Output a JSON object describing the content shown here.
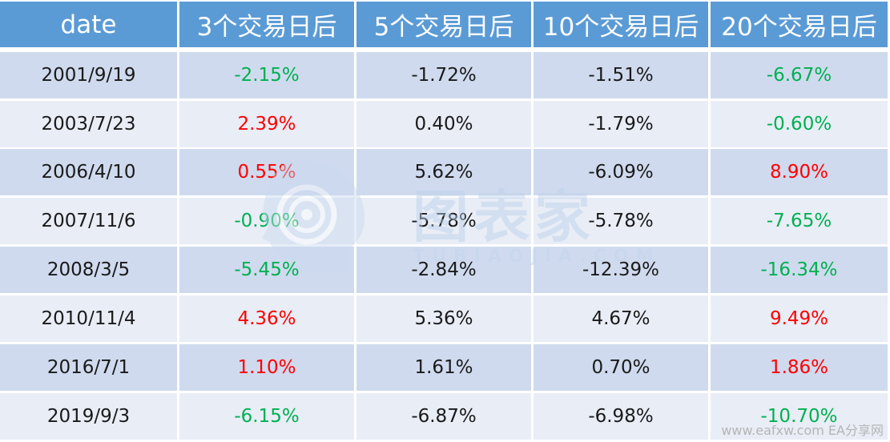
{
  "table": {
    "headers": [
      "date",
      "3个交易日后",
      "5个交易日后",
      "10个交易日后",
      "20个交易日后"
    ],
    "rows": [
      {
        "date": "2001/9/19",
        "cells": [
          {
            "v": "-2.15%",
            "c": "neg"
          },
          {
            "v": "-1.72%",
            "c": "plain"
          },
          {
            "v": "-1.51%",
            "c": "plain"
          },
          {
            "v": "-6.67%",
            "c": "neg"
          }
        ]
      },
      {
        "date": "2003/7/23",
        "cells": [
          {
            "v": "2.39%",
            "c": "pos"
          },
          {
            "v": "0.40%",
            "c": "plain"
          },
          {
            "v": "-1.79%",
            "c": "plain"
          },
          {
            "v": "-0.60%",
            "c": "neg"
          }
        ]
      },
      {
        "date": "2006/4/10",
        "cells": [
          {
            "v": "0.55%",
            "c": "pos"
          },
          {
            "v": "5.62%",
            "c": "plain"
          },
          {
            "v": "-6.09%",
            "c": "plain"
          },
          {
            "v": "8.90%",
            "c": "pos"
          }
        ]
      },
      {
        "date": "2007/11/6",
        "cells": [
          {
            "v": "-0.90%",
            "c": "neg"
          },
          {
            "v": "-5.78%",
            "c": "plain"
          },
          {
            "v": "-5.78%",
            "c": "plain"
          },
          {
            "v": "-7.65%",
            "c": "neg"
          }
        ]
      },
      {
        "date": "2008/3/5",
        "cells": [
          {
            "v": "-5.45%",
            "c": "neg"
          },
          {
            "v": "-2.84%",
            "c": "plain"
          },
          {
            "v": "-12.39%",
            "c": "plain"
          },
          {
            "v": "-16.34%",
            "c": "neg"
          }
        ]
      },
      {
        "date": "2010/11/4",
        "cells": [
          {
            "v": "4.36%",
            "c": "pos"
          },
          {
            "v": "5.36%",
            "c": "plain"
          },
          {
            "v": "4.67%",
            "c": "plain"
          },
          {
            "v": "9.49%",
            "c": "pos"
          }
        ]
      },
      {
        "date": "2016/7/1",
        "cells": [
          {
            "v": "1.10%",
            "c": "pos"
          },
          {
            "v": "1.61%",
            "c": "plain"
          },
          {
            "v": "0.70%",
            "c": "plain"
          },
          {
            "v": "1.86%",
            "c": "pos"
          }
        ]
      },
      {
        "date": "2019/9/3",
        "cells": [
          {
            "v": "-6.15%",
            "c": "neg"
          },
          {
            "v": "-6.87%",
            "c": "plain"
          },
          {
            "v": "-6.98%",
            "c": "plain"
          },
          {
            "v": "-10.70%",
            "c": "neg"
          }
        ]
      }
    ]
  },
  "colors": {
    "header_bg": "#5b9bd5",
    "band_dark": "#cfdaee",
    "band_light": "#e8edf6",
    "positive": "#ff0000",
    "negative": "#00b050"
  },
  "watermark": {
    "title": "图表家",
    "subtitle": "TUBIAOJIA.COM",
    "icon": "head-silhouette-icon"
  },
  "source_mark": "www.eafxw.com  EA分享网"
}
